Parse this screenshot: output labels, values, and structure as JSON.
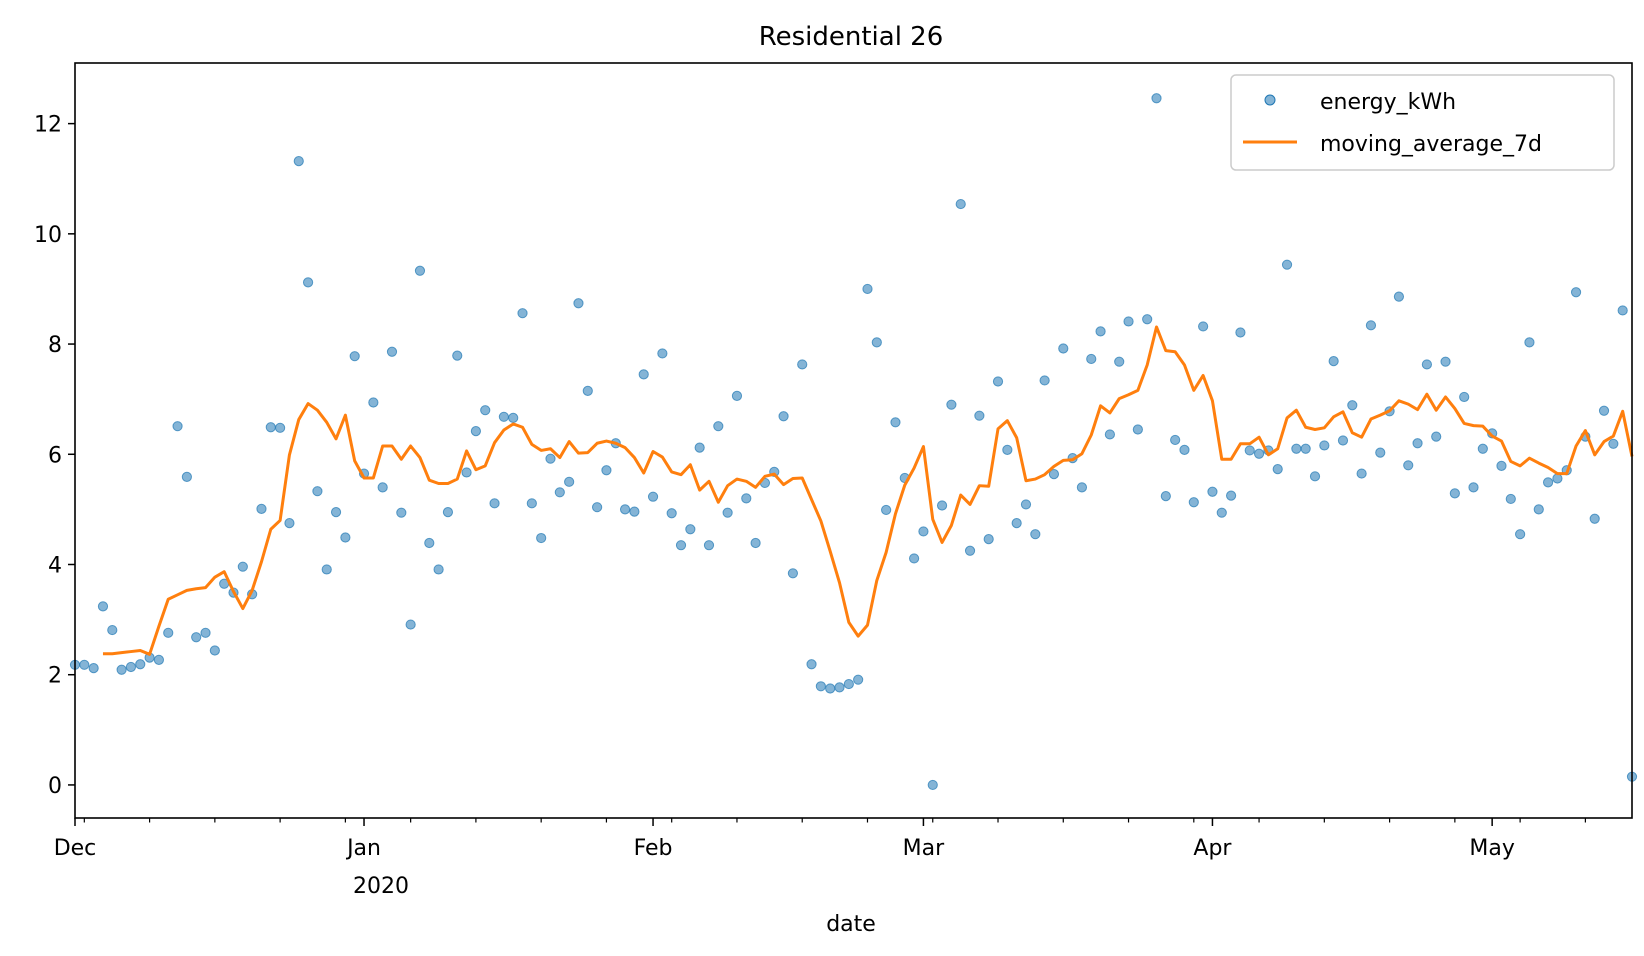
{
  "chart_data": {
    "type": "line",
    "title": "Residential 26",
    "xlabel": "date",
    "ylabel": "",
    "year_label": "2020",
    "x_ticks": [
      "Dec",
      "Jan",
      "Feb",
      "Mar",
      "Apr",
      "May"
    ],
    "y_ticks": [
      "0",
      "2",
      "4",
      "6",
      "8",
      "10",
      "12"
    ],
    "ylim": [
      -0.6,
      13.1
    ],
    "xlim": [
      "2019-12-01",
      "2020-05-16"
    ],
    "grid": false,
    "legend_position": "top-right",
    "series": [
      {
        "name": "energy_kWh",
        "kind": "scatter",
        "color": "#1f77b4",
        "x": [
          "2019-12-01",
          "2019-12-02",
          "2019-12-03",
          "2019-12-04",
          "2019-12-05",
          "2019-12-06",
          "2019-12-07",
          "2019-12-08",
          "2019-12-09",
          "2019-12-10",
          "2019-12-11",
          "2019-12-12",
          "2019-12-13",
          "2019-12-14",
          "2019-12-15",
          "2019-12-16",
          "2019-12-17",
          "2019-12-18",
          "2019-12-19",
          "2019-12-20",
          "2019-12-21",
          "2019-12-22",
          "2019-12-23",
          "2019-12-24",
          "2019-12-25",
          "2019-12-26",
          "2019-12-27",
          "2019-12-28",
          "2019-12-29",
          "2019-12-30",
          "2019-12-31",
          "2020-01-01",
          "2020-01-02",
          "2020-01-03",
          "2020-01-04",
          "2020-01-05",
          "2020-01-06",
          "2020-01-07",
          "2020-01-08",
          "2020-01-09",
          "2020-01-10",
          "2020-01-11",
          "2020-01-12",
          "2020-01-13",
          "2020-01-14",
          "2020-01-15",
          "2020-01-16",
          "2020-01-17",
          "2020-01-18",
          "2020-01-19",
          "2020-01-20",
          "2020-01-21",
          "2020-01-22",
          "2020-01-23",
          "2020-01-24",
          "2020-01-25",
          "2020-01-26",
          "2020-01-27",
          "2020-01-28",
          "2020-01-29",
          "2020-01-30",
          "2020-01-31",
          "2020-02-01",
          "2020-02-02",
          "2020-02-03",
          "2020-02-04",
          "2020-02-05",
          "2020-02-06",
          "2020-02-07",
          "2020-02-08",
          "2020-02-09",
          "2020-02-10",
          "2020-02-11",
          "2020-02-12",
          "2020-02-13",
          "2020-02-14",
          "2020-02-15",
          "2020-02-16",
          "2020-02-17",
          "2020-02-18",
          "2020-02-19",
          "2020-02-20",
          "2020-02-21",
          "2020-02-22",
          "2020-02-23",
          "2020-02-24",
          "2020-02-25",
          "2020-02-26",
          "2020-02-27",
          "2020-02-28",
          "2020-02-29",
          "2020-03-01",
          "2020-03-02",
          "2020-03-03",
          "2020-03-04",
          "2020-03-05",
          "2020-03-06",
          "2020-03-07",
          "2020-03-08",
          "2020-03-09",
          "2020-03-10",
          "2020-03-11",
          "2020-03-12",
          "2020-03-13",
          "2020-03-14",
          "2020-03-15",
          "2020-03-16",
          "2020-03-17",
          "2020-03-18",
          "2020-03-19",
          "2020-03-20",
          "2020-03-21",
          "2020-03-22",
          "2020-03-23",
          "2020-03-24",
          "2020-03-25",
          "2020-03-26",
          "2020-03-27",
          "2020-03-28",
          "2020-03-29",
          "2020-03-30",
          "2020-03-31",
          "2020-04-01",
          "2020-04-02",
          "2020-04-03",
          "2020-04-04",
          "2020-04-05",
          "2020-04-06",
          "2020-04-07",
          "2020-04-08",
          "2020-04-09",
          "2020-04-10",
          "2020-04-11",
          "2020-04-12",
          "2020-04-13",
          "2020-04-14",
          "2020-04-15",
          "2020-04-16",
          "2020-04-17",
          "2020-04-18",
          "2020-04-19",
          "2020-04-20",
          "2020-04-21",
          "2020-04-22",
          "2020-04-23",
          "2020-04-24",
          "2020-04-25",
          "2020-04-26",
          "2020-04-27",
          "2020-04-28",
          "2020-04-29",
          "2020-04-30",
          "2020-05-01",
          "2020-05-02",
          "2020-05-03",
          "2020-05-04",
          "2020-05-05",
          "2020-05-06",
          "2020-05-07",
          "2020-05-08",
          "2020-05-09",
          "2020-05-10",
          "2020-05-11",
          "2020-05-12",
          "2020-05-13",
          "2020-05-14",
          "2020-05-15",
          "2020-05-16"
        ],
        "values": [
          2.18,
          2.18,
          2.12,
          3.24,
          2.81,
          2.09,
          2.14,
          2.19,
          2.31,
          2.27,
          2.76,
          6.51,
          5.59,
          2.68,
          2.76,
          2.44,
          3.65,
          3.49,
          3.96,
          3.46,
          5.01,
          6.49,
          6.48,
          4.75,
          11.32,
          9.12,
          5.33,
          3.91,
          4.95,
          4.49,
          7.78,
          5.65,
          6.94,
          5.4,
          7.86,
          4.94,
          2.91,
          9.33,
          4.39,
          3.91,
          4.95,
          7.79,
          5.67,
          6.42,
          6.8,
          5.11,
          6.68,
          6.66,
          8.56,
          5.11,
          4.48,
          5.92,
          5.31,
          5.5,
          8.74,
          7.15,
          5.04,
          5.71,
          6.2,
          5.0,
          4.96,
          7.45,
          5.23,
          7.83,
          4.93,
          4.35,
          4.64,
          6.12,
          4.35,
          6.51,
          4.94,
          7.06,
          5.2,
          4.39,
          5.48,
          5.68,
          6.69,
          3.84,
          7.63,
          2.19,
          1.79,
          1.75,
          1.77,
          1.83,
          1.91,
          9.0,
          8.03,
          4.99,
          6.58,
          5.57,
          4.11,
          4.6,
          0.0,
          5.07,
          6.9,
          10.54,
          4.25,
          6.7,
          4.46,
          7.32,
          6.08,
          4.75,
          5.09,
          4.55,
          7.34,
          5.64,
          7.92,
          5.93,
          5.4,
          7.73,
          8.23,
          6.36,
          7.68,
          8.41,
          6.45,
          8.45,
          12.46,
          5.24,
          6.26,
          6.08,
          5.13,
          8.32,
          5.32,
          4.94,
          5.25,
          8.21,
          6.07,
          6.01,
          6.07,
          5.73,
          9.44,
          6.1,
          6.1,
          5.6,
          6.16,
          7.69,
          6.25,
          6.89,
          5.65,
          8.34,
          6.03,
          6.78,
          8.86,
          5.8,
          6.2,
          7.63,
          6.32,
          7.68,
          5.29,
          7.04,
          5.4,
          6.1,
          6.38,
          5.79,
          5.19,
          4.55,
          8.03,
          5.0,
          5.49,
          5.56,
          5.71,
          8.94,
          6.32,
          4.83,
          6.79,
          6.19,
          8.61,
          0.15
        ]
      },
      {
        "name": "moving_average_7d",
        "kind": "line",
        "color": "#ff7f0e",
        "x_start": "2019-12-04",
        "values": [
          2.38,
          2.38,
          2.4,
          2.42,
          2.44,
          2.37,
          2.88,
          3.37,
          3.45,
          3.53,
          3.56,
          3.58,
          3.77,
          3.87,
          3.51,
          3.2,
          3.53,
          4.05,
          4.64,
          4.8,
          5.99,
          6.63,
          6.92,
          6.8,
          6.58,
          6.28,
          6.71,
          5.88,
          5.57,
          5.57,
          6.15,
          6.15,
          5.91,
          6.15,
          5.94,
          5.53,
          5.47,
          5.47,
          5.55,
          6.06,
          5.72,
          5.79,
          6.21,
          6.44,
          6.55,
          6.49,
          6.18,
          6.07,
          6.1,
          5.94,
          6.23,
          6.02,
          6.03,
          6.2,
          6.24,
          6.2,
          6.12,
          5.94,
          5.66,
          6.05,
          5.95,
          5.68,
          5.63,
          5.81,
          5.35,
          5.51,
          5.13,
          5.43,
          5.55,
          5.51,
          5.4,
          5.6,
          5.64,
          5.45,
          5.56,
          5.57,
          5.18,
          4.79,
          4.24,
          3.67,
          2.95,
          2.7,
          2.9,
          3.71,
          4.22,
          4.92,
          5.44,
          5.75,
          6.14,
          4.82,
          4.4,
          4.71,
          5.26,
          5.09,
          5.43,
          5.42,
          6.46,
          6.61,
          6.3,
          5.52,
          5.55,
          5.63,
          5.78,
          5.89,
          5.9,
          6.01,
          6.35,
          6.88,
          6.75,
          7.01,
          7.08,
          7.16,
          7.62,
          8.31,
          7.88,
          7.86,
          7.62,
          7.16,
          7.43,
          6.97,
          5.91,
          5.91,
          6.19,
          6.19,
          6.31,
          5.99,
          6.1,
          6.66,
          6.8,
          6.49,
          6.45,
          6.48,
          6.68,
          6.77,
          6.39,
          6.31,
          6.64,
          6.71,
          6.79,
          6.97,
          6.91,
          6.81,
          7.09,
          6.8,
          7.04,
          6.83,
          6.56,
          6.52,
          6.51,
          6.33,
          6.24,
          5.87,
          5.79,
          5.93,
          5.84,
          5.76,
          5.65,
          5.65,
          6.15,
          6.43,
          5.99,
          6.23,
          6.33,
          6.78,
          5.96
        ]
      }
    ]
  }
}
